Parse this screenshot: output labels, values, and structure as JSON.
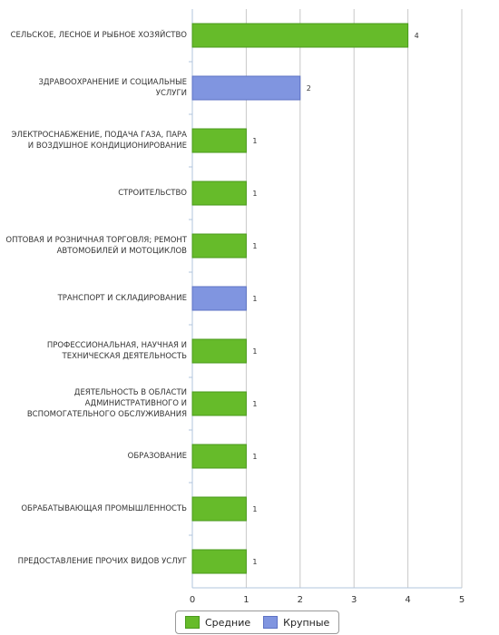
{
  "chart_data": {
    "type": "bar",
    "orientation": "horizontal",
    "categories": [
      "СЕЛЬСКОЕ, ЛЕСНОЕ И РЫБНОЕ ХОЗЯЙСТВО",
      "ЗДРАВООХРАНЕНИЕ И СОЦИАЛЬНЫЕ УСЛУГИ",
      "ЭЛЕКТРОСНАБЖЕНИЕ, ПОДАЧА ГАЗА, ПАРА И ВОЗДУШНОЕ КОНДИЦИОНИРОВАНИЕ",
      "СТРОИТЕЛЬСТВО",
      "ОПТОВАЯ И РОЗНИЧНАЯ ТОРГОВЛЯ; РЕМОНТ АВТОМОБИЛЕЙ И МОТОЦИКЛОВ",
      "ТРАНСПОРТ И СКЛАДИРОВАНИЕ",
      "ПРОФЕССИОНАЛЬНАЯ, НАУЧНАЯ И ТЕХНИЧЕСКАЯ ДЕЯТЕЛЬНОСТЬ",
      "ДЕЯТЕЛЬНОСТЬ В ОБЛАСТИ АДМИНИСТРАТИВНОГО И ВСПОМОГАТЕЛЬНОГО ОБСЛУЖИВАНИЯ",
      "ОБРАЗОВАНИЕ",
      "ОБРАБАТЫВАЮЩАЯ ПРОМЫШЛЕННОСТЬ",
      "ПРЕДОСТАВЛЕНИЕ ПРОЧИХ ВИДОВ УСЛУГ"
    ],
    "series": [
      {
        "name": "Средние",
        "color": "#66bb2a",
        "values": [
          4,
          null,
          1,
          1,
          1,
          null,
          1,
          1,
          1,
          1,
          1
        ]
      },
      {
        "name": "Крупные",
        "color": "#8095e0",
        "values": [
          null,
          2,
          null,
          null,
          null,
          1,
          null,
          null,
          null,
          null,
          null
        ]
      }
    ],
    "xlim": [
      0,
      5
    ],
    "xticks": [
      "0",
      "1",
      "2",
      "3",
      "4",
      "5"
    ],
    "grid": true,
    "legend_position": "bottom"
  }
}
